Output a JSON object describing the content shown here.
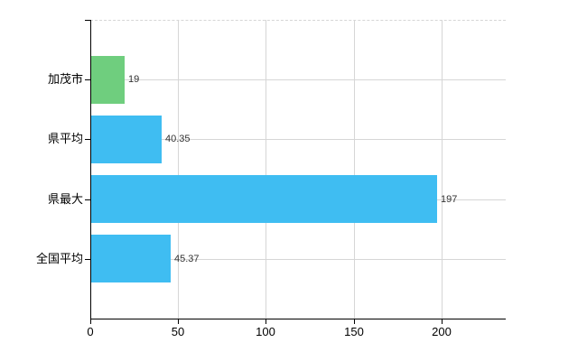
{
  "chart_data": {
    "type": "bar",
    "orientation": "horizontal",
    "categories": [
      "加茂市",
      "県平均",
      "県最大",
      "全国平均"
    ],
    "values": [
      19,
      40.35,
      197,
      45.37
    ],
    "value_labels": [
      "19",
      "40.35",
      "197",
      "45.37"
    ],
    "bar_colors": [
      "#6FCE7E",
      "#3FBDF2",
      "#3FBDF2",
      "#3FBDF2"
    ],
    "x_ticks": [
      "0",
      "50",
      "100",
      "150",
      "200"
    ],
    "x_tick_values": [
      0,
      50,
      100,
      150,
      200
    ],
    "xlim": [
      0,
      236.7
    ],
    "grid": true,
    "legend": false,
    "colors": {
      "axis": "#000000",
      "grid": "#d6d6d6",
      "value_label": "#333333",
      "background": "#ffffff"
    }
  }
}
